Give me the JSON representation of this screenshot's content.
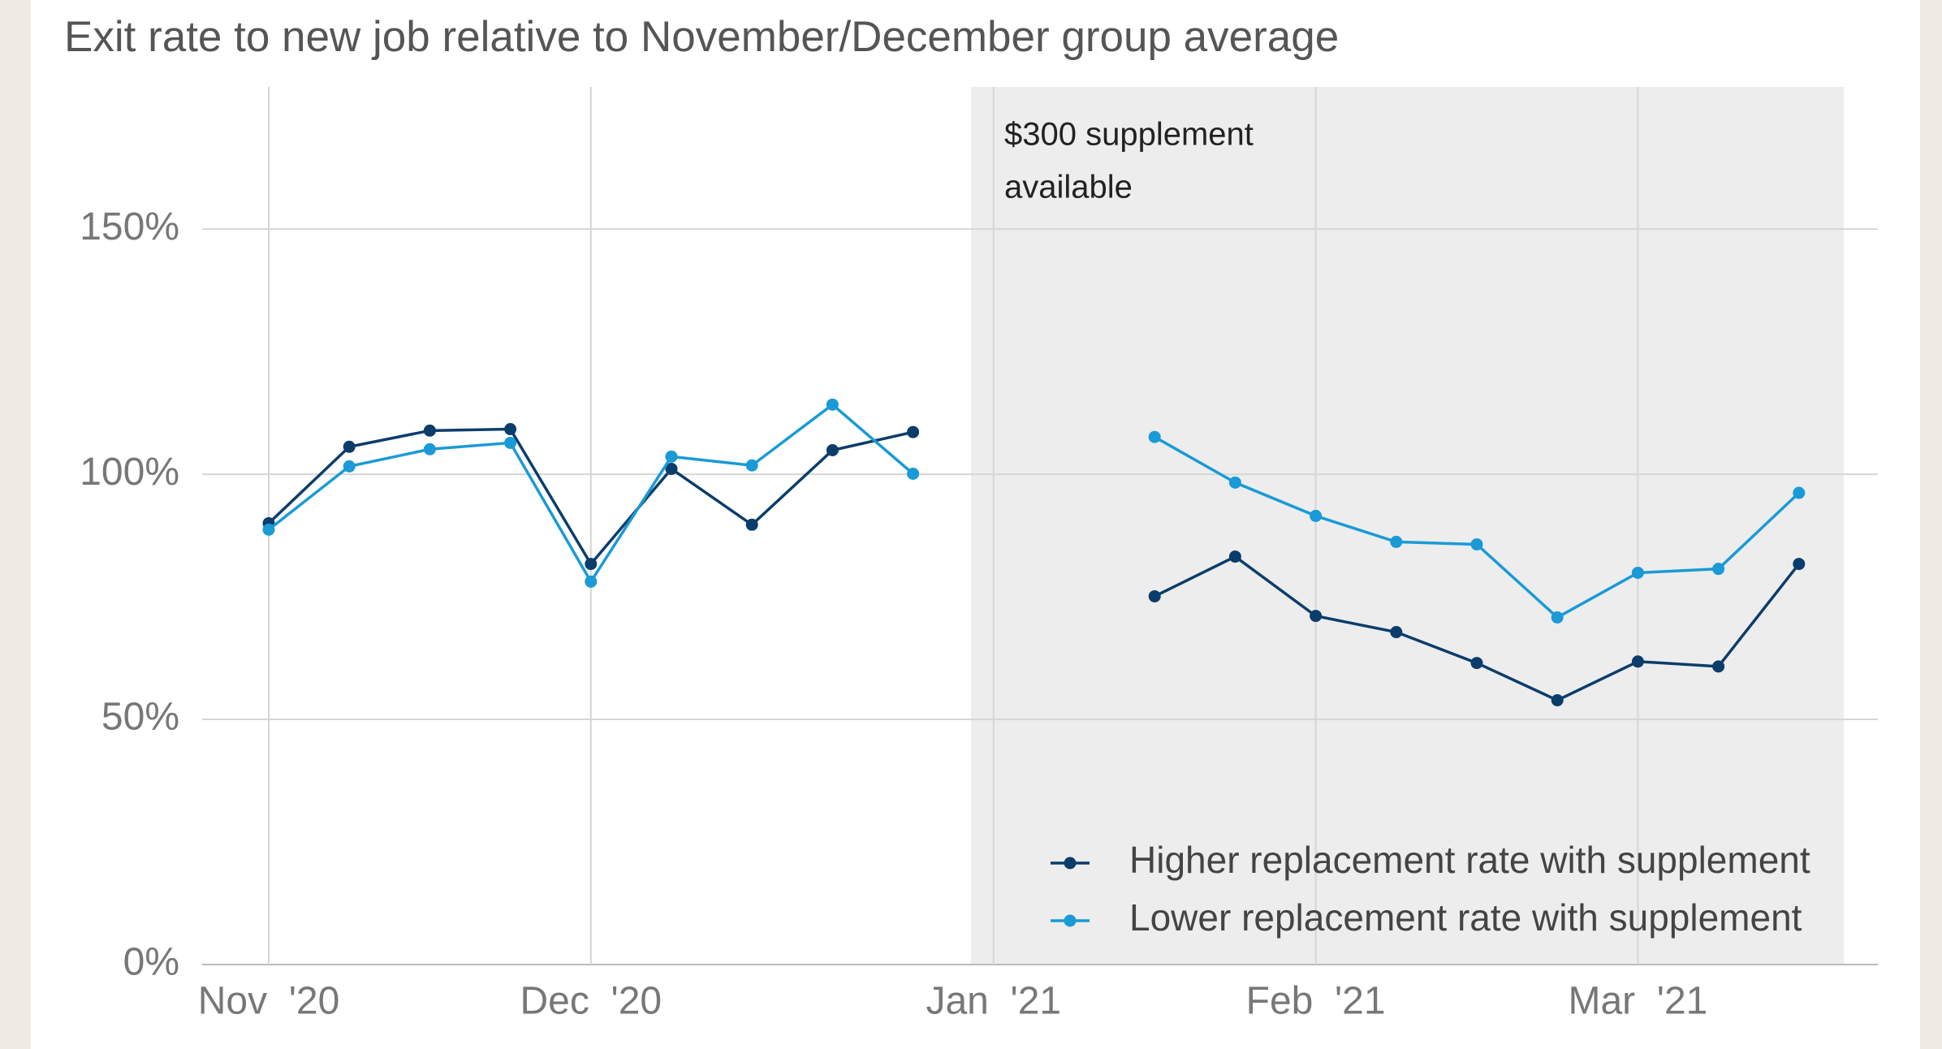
{
  "chart_data": {
    "type": "line",
    "title": "Exit rate to new job relative to November/December group average",
    "annotation": [
      "$300 supplement",
      "available"
    ],
    "categories": [
      "Nov  '20",
      null,
      null,
      null,
      "Dec  '20",
      null,
      null,
      null,
      null,
      "Jan  '21",
      null,
      null,
      null,
      "Feb  '21",
      null,
      null,
      null,
      "Mar  '21",
      null,
      null
    ],
    "series": [
      {
        "name": "Higher replacement rate with supplement",
        "color": "#0b3d6b",
        "values": [
          90.0,
          105.6,
          108.9,
          109.2,
          81.7,
          101.1,
          89.7,
          104.9,
          108.6,
          null,
          null,
          75.1,
          83.2,
          71.1,
          67.8,
          61.5,
          53.9,
          61.8,
          60.8,
          81.7
        ]
      },
      {
        "name": "Lower replacement rate with supplement",
        "color": "#1a9ad6",
        "values": [
          88.7,
          101.6,
          105.1,
          106.4,
          78.1,
          103.6,
          101.8,
          114.2,
          100.1,
          null,
          null,
          107.6,
          98.3,
          91.5,
          86.2,
          85.7,
          70.8,
          79.9,
          80.7,
          96.2
        ]
      }
    ],
    "ylim": [
      0,
      179
    ],
    "yticks": [
      {
        "value": 0,
        "label": "0%"
      },
      {
        "value": 50,
        "label": "50%"
      },
      {
        "value": 100,
        "label": "100%"
      },
      {
        "value": 150,
        "label": "150%"
      }
    ],
    "grid": true,
    "legend": "lower right"
  }
}
